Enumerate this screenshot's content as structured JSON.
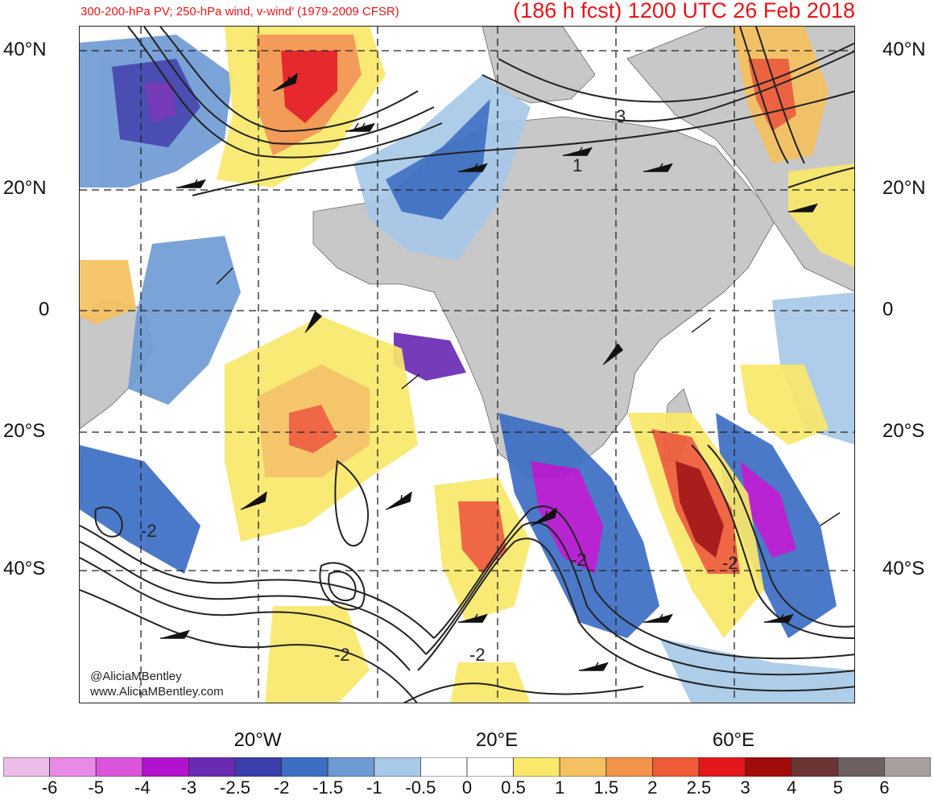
{
  "header": {
    "left_title": "300-200-hPa PV; 250-hPa wind, v-wind’ (1979-2009 CFSR)",
    "right_title": "(186 h fcst) 1200 UTC 26 Feb 2018"
  },
  "map": {
    "lat_labels_left": [
      "40°N",
      "20°N",
      "0",
      "20°S",
      "40°S"
    ],
    "lat_labels_right": [
      "40°N",
      "20°N",
      "0",
      "20°S",
      "40°S"
    ],
    "lon_labels": [
      "20°W",
      "20°E",
      "60°E"
    ],
    "contour_labels": [
      "3",
      "1",
      "-2",
      "-2",
      "-2",
      "-2",
      "-2"
    ],
    "credit_handle": "@AliciaMBentley",
    "credit_url": "www.AliciaMBentley.com",
    "land_color": "#c8c8c8",
    "ocean_color": "#ffffff"
  },
  "colorbar": {
    "labels": [
      "-6",
      "-5",
      "-4",
      "-3",
      "-2.5",
      "-2",
      "-1.5",
      "-1",
      "-0.5",
      "0",
      "0.5",
      "1",
      "1.5",
      "2",
      "2.5",
      "3",
      "4",
      "5",
      "6"
    ],
    "colors": [
      "#ecbde9",
      "#e88ae6",
      "#da55dc",
      "#b212cf",
      "#6a2ab2",
      "#3b3eac",
      "#3c6ec4",
      "#6f9bd4",
      "#a8c9e8",
      "#ffffff",
      "#ffffff",
      "#f9e86a",
      "#f5c160",
      "#f2934a",
      "#ee5b36",
      "#e4171b",
      "#a30a0a",
      "#6d3434",
      "#6c6160",
      "#a69f9e"
    ]
  }
}
